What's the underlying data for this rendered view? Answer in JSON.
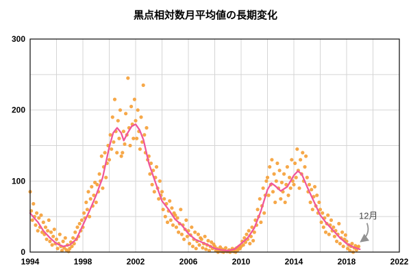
{
  "chart_data": {
    "type": "scatter",
    "title": "黒点相対数月平均値の長期変化",
    "x_axis": {
      "min": 1994,
      "max": 2022,
      "grid_step": 2,
      "label_step": 4,
      "labels": [
        "1994",
        "1998",
        "2002",
        "2006",
        "2010",
        "2014",
        "2018",
        "2022"
      ]
    },
    "y_axis": {
      "min": 0,
      "max": 300,
      "grid_step": 50,
      "label_step": 100,
      "labels": [
        "0",
        "100",
        "200",
        "300"
      ]
    },
    "grid": true,
    "legend": "none",
    "series": [
      {
        "name": "monthly-mean-sunspot-number",
        "type": "scatter",
        "color": "#F5A13A",
        "start_x": 1994.0,
        "step_months": 1,
        "values": [
          85,
          58,
          45,
          68,
          50,
          38,
          55,
          30,
          48,
          35,
          52,
          28,
          42,
          25,
          35,
          18,
          30,
          45,
          15,
          28,
          10,
          22,
          32,
          12,
          18,
          5,
          12,
          25,
          8,
          2,
          15,
          6,
          20,
          3,
          10,
          1,
          5,
          14,
          8,
          20,
          12,
          28,
          18,
          35,
          22,
          40,
          30,
          45,
          35,
          55,
          48,
          70,
          60,
          85,
          50,
          75,
          92,
          65,
          80,
          98,
          70,
          95,
          85,
          110,
          100,
          135,
          90,
          120,
          140,
          105,
          125,
          150,
          130,
          165,
          145,
          190,
          155,
          215,
          170,
          140,
          185,
          160,
          200,
          135,
          140,
          170,
          152,
          195,
          165,
          245,
          175,
          150,
          205,
          180,
          160,
          215,
          185,
          160,
          200,
          170,
          145,
          190,
          155,
          235,
          165,
          140,
          175,
          130,
          135,
          110,
          125,
          95,
          115,
          85,
          105,
          120,
          90,
          75,
          100,
          80,
          85,
          60,
          75,
          50,
          68,
          42,
          58,
          72,
          45,
          62,
          38,
          55,
          52,
          35,
          48,
          28,
          40,
          60,
          25,
          38,
          18,
          32,
          45,
          22,
          30,
          12,
          24,
          35,
          8,
          18,
          28,
          5,
          15,
          25,
          10,
          20,
          18,
          6,
          12,
          22,
          4,
          10,
          16,
          2,
          8,
          14,
          5,
          11,
          8,
          2,
          5,
          0,
          3,
          7,
          1,
          4,
          0,
          2,
          6,
          1,
          1,
          3,
          0,
          2,
          5,
          1,
          4,
          0,
          6,
          3,
          8,
          5,
          8,
          15,
          10,
          20,
          14,
          25,
          18,
          30,
          12,
          22,
          35,
          16,
          28,
          45,
          38,
          60,
          50,
          75,
          42,
          65,
          90,
          55,
          80,
          100,
          105,
          80,
          120,
          95,
          130,
          85,
          110,
          70,
          100,
          125,
          90,
          115,
          75,
          98,
          85,
          110,
          70,
          95,
          120,
          80,
          105,
          90,
          130,
          100,
          95,
          125,
          105,
          145,
          115,
          90,
          130,
          110,
          140,
          100,
          120,
          135,
          105,
          85,
          95,
          70,
          88,
          60,
          78,
          92,
          65,
          80,
          55,
          70,
          60,
          42,
          55,
          35,
          48,
          28,
          40,
          52,
          25,
          38,
          45,
          30,
          35,
          22,
          30,
          15,
          25,
          40,
          12,
          20,
          28,
          8,
          18,
          24,
          15,
          5,
          10,
          2,
          8,
          12,
          0,
          6,
          9,
          3,
          7,
          8
        ]
      },
      {
        "name": "smoothed-sunspot-number",
        "type": "line",
        "color": "#F0569A",
        "points": [
          [
            1994.0,
            55
          ],
          [
            1994.3,
            48
          ],
          [
            1994.6,
            42
          ],
          [
            1995.0,
            30
          ],
          [
            1995.5,
            20
          ],
          [
            1996.0,
            12
          ],
          [
            1996.5,
            8
          ],
          [
            1997.0,
            10
          ],
          [
            1997.5,
            18
          ],
          [
            1998.0,
            38
          ],
          [
            1998.5,
            58
          ],
          [
            1999.0,
            80
          ],
          [
            1999.5,
            105
          ],
          [
            2000.0,
            148
          ],
          [
            2000.3,
            168
          ],
          [
            2000.6,
            175
          ],
          [
            2000.9,
            168
          ],
          [
            2001.1,
            157
          ],
          [
            2001.4,
            168
          ],
          [
            2001.7,
            177
          ],
          [
            2002.0,
            180
          ],
          [
            2002.3,
            172
          ],
          [
            2002.6,
            158
          ],
          [
            2003.0,
            125
          ],
          [
            2003.5,
            98
          ],
          [
            2004.0,
            72
          ],
          [
            2004.5,
            60
          ],
          [
            2005.0,
            46
          ],
          [
            2005.5,
            38
          ],
          [
            2006.0,
            26
          ],
          [
            2006.5,
            18
          ],
          [
            2007.0,
            14
          ],
          [
            2007.5,
            10
          ],
          [
            2008.0,
            5
          ],
          [
            2008.5,
            3
          ],
          [
            2009.0,
            2
          ],
          [
            2009.5,
            4
          ],
          [
            2010.0,
            12
          ],
          [
            2010.5,
            20
          ],
          [
            2011.0,
            34
          ],
          [
            2011.5,
            58
          ],
          [
            2012.0,
            88
          ],
          [
            2012.3,
            97
          ],
          [
            2012.6,
            93
          ],
          [
            2013.0,
            86
          ],
          [
            2013.5,
            92
          ],
          [
            2014.0,
            108
          ],
          [
            2014.3,
            114
          ],
          [
            2014.6,
            110
          ],
          [
            2015.0,
            92
          ],
          [
            2015.5,
            72
          ],
          [
            2016.0,
            52
          ],
          [
            2016.5,
            40
          ],
          [
            2017.0,
            30
          ],
          [
            2017.5,
            20
          ],
          [
            2018.0,
            12
          ],
          [
            2018.5,
            7
          ],
          [
            2019.0,
            4
          ]
        ]
      }
    ],
    "annotation": {
      "text": "12月",
      "target_x": 2018.92,
      "target_y": 8,
      "arrow_color": "#919191"
    }
  },
  "colors": {
    "background": "#ffffff",
    "grid": "#d4d4d4",
    "axis_frame": "#1a1a1a",
    "scatter": "#F5A13A",
    "line": "#F0569A",
    "annotation_arrow": "#919191"
  }
}
